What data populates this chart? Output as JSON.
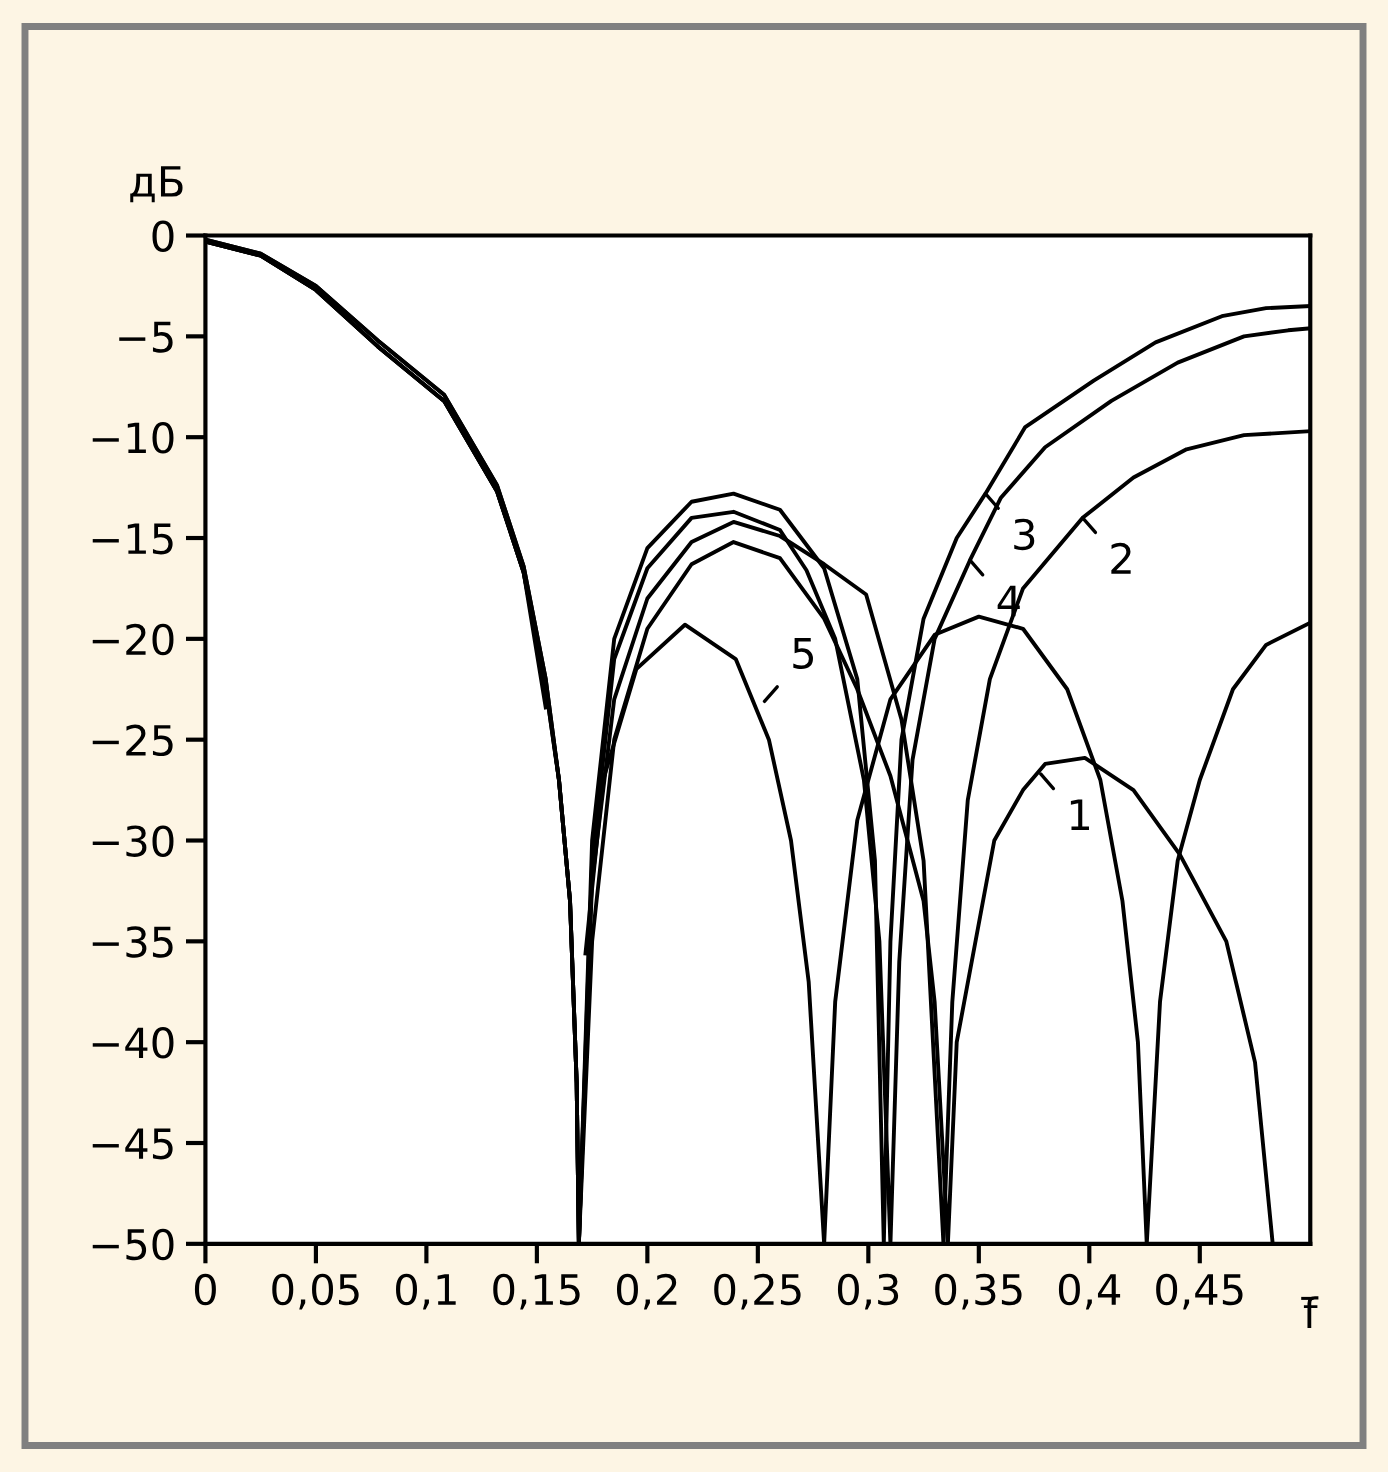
{
  "chart_data": {
    "type": "line",
    "xlabel": "f̄",
    "ylabel": "дБ",
    "xlim": [
      0,
      0.5
    ],
    "ylim": [
      -50,
      0
    ],
    "xticks": [
      0,
      {
        "value": 0.05,
        "label": "0,05"
      },
      {
        "value": 0.1,
        "label": "0,1"
      },
      {
        "value": 0.15,
        "label": "0,15"
      },
      {
        "value": 0.2,
        "label": "0,2"
      },
      {
        "value": 0.25,
        "label": "0,25"
      },
      {
        "value": 0.3,
        "label": "0,3"
      },
      {
        "value": 0.35,
        "label": "0,35"
      },
      {
        "value": 0.4,
        "label": "0,4"
      },
      {
        "value": 0.45,
        "label": "0,45"
      }
    ],
    "yticks": [
      0,
      {
        "value": -5,
        "label": "−5"
      },
      {
        "value": -10,
        "label": "−10"
      },
      {
        "value": -15,
        "label": "−15"
      },
      {
        "value": -20,
        "label": "−20"
      },
      {
        "value": -25,
        "label": "−25"
      },
      {
        "value": -30,
        "label": "−30"
      },
      {
        "value": -35,
        "label": "−35"
      },
      {
        "value": -40,
        "label": "−40"
      },
      {
        "value": -45,
        "label": "−45"
      },
      {
        "value": -50,
        "label": "−50"
      }
    ],
    "grid": false,
    "legend": false,
    "marker": "none",
    "line_style": "solid",
    "series": [
      {
        "color": "#000000",
        "x": [
          0,
          0.025,
          0.05,
          0.078,
          0.108,
          0.132,
          0.144,
          0.154,
          0.16,
          0.165,
          0.168,
          0.169,
          0.175,
          0.185,
          0.2,
          0.22,
          0.239,
          0.26,
          0.28,
          0.295,
          0.31,
          0.325,
          0.33,
          0.336,
          0.34,
          0.357,
          0.37,
          0.38,
          0.398,
          0.42,
          0.441,
          0.462,
          0.475,
          0.483
        ],
        "values": [
          -0.2,
          -0.9,
          -2.5,
          -5.2,
          -7.9,
          -12.4,
          -16.4,
          -22,
          -27,
          -33,
          -42,
          -50,
          -35,
          -25,
          -19.5,
          -16.3,
          -15.2,
          -16,
          -19,
          -22.5,
          -26.8,
          -33,
          -38,
          -50,
          -40,
          -30,
          -27.5,
          -26.2,
          -25.9,
          -27.5,
          -30.7,
          -35,
          -41,
          -50
        ]
      },
      {
        "color": "#000000",
        "x": [
          0,
          0.025,
          0.05,
          0.078,
          0.108,
          0.132,
          0.144,
          0.154,
          0.16,
          0.165,
          0.168,
          0.169,
          0.175,
          0.185,
          0.2,
          0.22,
          0.239,
          0.26,
          0.28,
          0.299,
          0.315,
          0.325,
          0.334,
          0.338,
          0.345,
          0.355,
          0.37,
          0.397,
          0.42,
          0.444,
          0.47,
          0.5
        ],
        "values": [
          -0.3,
          -1.0,
          -2.7,
          -5.5,
          -8.2,
          -12.7,
          -16.7,
          -22.4,
          -27,
          -33,
          -42,
          -50,
          -32,
          -23,
          -18,
          -15.2,
          -14.2,
          -14.9,
          -16.3,
          -17.8,
          -24,
          -31,
          -50,
          -38,
          -28,
          -22,
          -17.5,
          -14.0,
          -12,
          -10.6,
          -9.9,
          -9.7
        ]
      },
      {
        "color": "#000000",
        "x": [
          0,
          0.025,
          0.05,
          0.078,
          0.108,
          0.132,
          0.144,
          0.154,
          0.16,
          0.165,
          0.168,
          0.169,
          0.175,
          0.185,
          0.2,
          0.22,
          0.239,
          0.26,
          0.28,
          0.295,
          0.303,
          0.307,
          0.31,
          0.315,
          0.325,
          0.34,
          0.353,
          0.371,
          0.402,
          0.43,
          0.46,
          0.48,
          0.5
        ],
        "values": [
          -0.2,
          -0.9,
          -2.5,
          -5.2,
          -7.9,
          -12.4,
          -16.4,
          -22,
          -27,
          -33,
          -42,
          -50,
          -30,
          -20,
          -15.5,
          -13.2,
          -12.8,
          -13.6,
          -16.5,
          -22,
          -31,
          -50,
          -35,
          -25,
          -19,
          -15,
          -12.8,
          -9.5,
          -7.2,
          -5.3,
          -4.0,
          -3.6,
          -3.5
        ]
      },
      {
        "color": "#000000",
        "x": [
          0,
          0.025,
          0.05,
          0.078,
          0.108,
          0.132,
          0.144,
          0.154,
          0.16,
          0.165,
          0.168,
          0.169,
          0.175,
          0.185,
          0.2,
          0.22,
          0.239,
          0.26,
          0.272,
          0.285,
          0.298,
          0.305,
          0.31,
          0.314,
          0.32,
          0.33,
          0.346,
          0.36,
          0.38,
          0.41,
          0.44,
          0.47,
          0.49,
          0.5
        ],
        "values": [
          -0.3,
          -1.0,
          -2.7,
          -5.5,
          -8.2,
          -12.7,
          -16.7,
          -22.4,
          -27,
          -33,
          -42,
          -50,
          -31,
          -21,
          -16.5,
          -14,
          -13.7,
          -14.6,
          -16.6,
          -20,
          -27,
          -35,
          -50,
          -36,
          -26,
          -20,
          -16.1,
          -13,
          -10.5,
          -8.2,
          -6.3,
          -5.0,
          -4.7,
          -4.6
        ]
      },
      {
        "color": "#000000",
        "x": [
          0,
          0.025,
          0.05,
          0.078,
          0.108,
          0.132,
          0.144,
          0.154,
          null,
          0.172,
          0.18,
          0.195,
          0.217,
          0.24,
          0.255,
          0.265,
          0.273,
          0.28,
          0.285,
          0.295,
          0.31,
          0.33,
          0.35,
          0.37,
          0.39,
          0.405,
          0.415,
          0.422,
          0.426,
          0.432,
          0.44,
          0.45,
          0.465,
          0.48,
          0.5
        ],
        "values": [
          -0.3,
          -1.0,
          -2.7,
          -5.5,
          -8.2,
          -12.7,
          -16.7,
          -23.4,
          null,
          -35.6,
          -27,
          -21.5,
          -19.3,
          -21,
          -25,
          -30,
          -37,
          -50,
          -38,
          -29,
          -23,
          -19.8,
          -18.9,
          -19.5,
          -22.5,
          -27,
          -33,
          -40,
          -50,
          -38,
          -31,
          -27,
          -22.5,
          -20.3,
          -19.2
        ]
      }
    ],
    "annotations": [
      {
        "text": "1",
        "x": 0.378,
        "y": -26.7
      },
      {
        "text": "2",
        "x": 0.397,
        "y": -14.0
      },
      {
        "text": "3",
        "x": 0.353,
        "y": -12.8
      },
      {
        "text": "4",
        "x": 0.346,
        "y": -16.1
      },
      {
        "text": "5",
        "x": 0.253,
        "y": -23.1
      }
    ]
  }
}
